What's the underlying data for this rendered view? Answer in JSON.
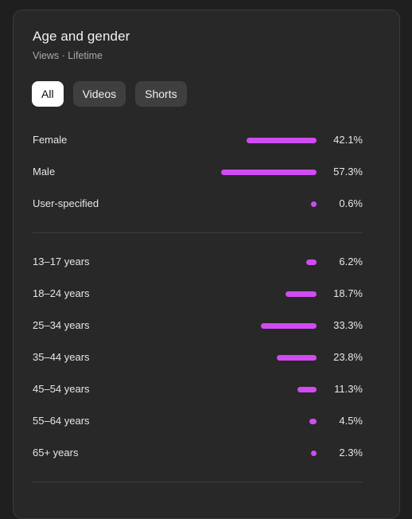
{
  "header": {
    "title": "Age and gender",
    "subtitle": "Views · Lifetime"
  },
  "tabs": [
    {
      "label": "All",
      "active": true
    },
    {
      "label": "Videos",
      "active": false
    },
    {
      "label": "Shorts",
      "active": false
    }
  ],
  "colors": {
    "bar": "#d14bf2",
    "card_bg": "#282828",
    "active_tab_bg": "#ffffff"
  },
  "gender": [
    {
      "label": "Female",
      "percent": "42.1%",
      "value": 42.1
    },
    {
      "label": "Male",
      "percent": "57.3%",
      "value": 57.3
    },
    {
      "label": "User-specified",
      "percent": "0.6%",
      "value": 0.6
    }
  ],
  "age": [
    {
      "label": "13–17 years",
      "percent": "6.2%",
      "value": 6.2
    },
    {
      "label": "18–24 years",
      "percent": "18.7%",
      "value": 18.7
    },
    {
      "label": "25–34 years",
      "percent": "33.3%",
      "value": 33.3
    },
    {
      "label": "35–44 years",
      "percent": "23.8%",
      "value": 23.8
    },
    {
      "label": "45–54 years",
      "percent": "11.3%",
      "value": 11.3
    },
    {
      "label": "55–64 years",
      "percent": "4.5%",
      "value": 4.5
    },
    {
      "label": "65+ years",
      "percent": "2.3%",
      "value": 2.3
    }
  ]
}
